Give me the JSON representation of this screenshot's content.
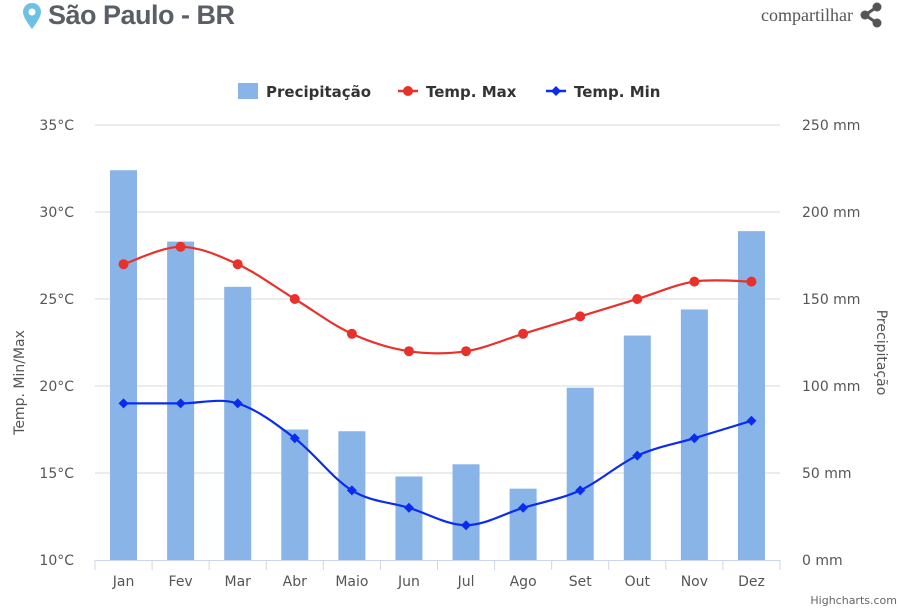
{
  "header": {
    "title": "São Paulo - BR",
    "share_label": "compartilhar"
  },
  "colors": {
    "bar": "#88b4e7",
    "max": "#e8312a",
    "min": "#0b2cf0",
    "grid": "#d8d8d8"
  },
  "chart_data": {
    "type": "bar+line",
    "categories": [
      "Jan",
      "Fev",
      "Mar",
      "Abr",
      "Maio",
      "Jun",
      "Jul",
      "Ago",
      "Set",
      "Out",
      "Nov",
      "Dez"
    ],
    "series": [
      {
        "name": "Precipitação",
        "type": "bar",
        "axis": "right",
        "values": [
          224,
          183,
          157,
          75,
          74,
          48,
          55,
          41,
          99,
          129,
          144,
          189
        ]
      },
      {
        "name": "Temp. Max",
        "type": "line",
        "axis": "left",
        "values": [
          27,
          28,
          27,
          25,
          23,
          22,
          22,
          23,
          24,
          25,
          26,
          26
        ]
      },
      {
        "name": "Temp. Min",
        "type": "line",
        "axis": "left",
        "values": [
          19,
          19,
          19,
          17,
          14,
          13,
          12,
          13,
          14,
          16,
          17,
          18
        ]
      }
    ],
    "left_axis": {
      "label": "Temp. Min/Max",
      "range": [
        10,
        35
      ],
      "ticks": [
        "10°C",
        "15°C",
        "20°C",
        "25°C",
        "30°C",
        "35°C"
      ]
    },
    "right_axis": {
      "label": "Precipitação",
      "range": [
        0,
        250
      ],
      "ticks": [
        "0 mm",
        "50 mm",
        "100 mm",
        "150 mm",
        "200 mm",
        "250 mm"
      ]
    },
    "legend": "top-center",
    "credits": "Highcharts.com"
  }
}
